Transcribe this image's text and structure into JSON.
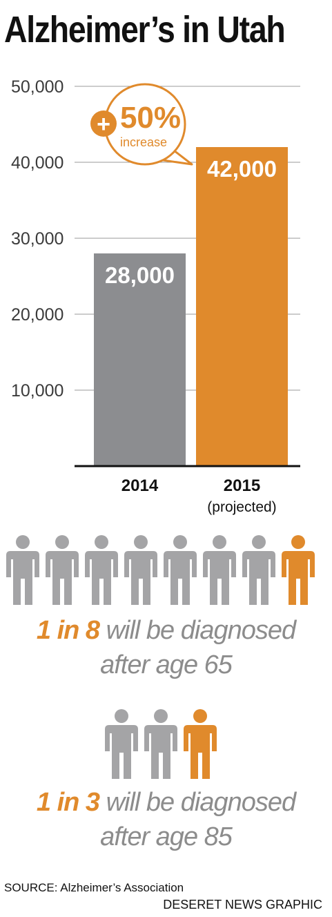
{
  "title": "Alzheimer’s in Utah",
  "chart_data": {
    "type": "bar",
    "categories": [
      "2014",
      "2015"
    ],
    "category_sublabels": [
      "",
      "(projected)"
    ],
    "values": [
      28000,
      42000
    ],
    "value_labels": [
      "28,000",
      "42,000"
    ],
    "yticks": [
      10000,
      20000,
      30000,
      40000,
      50000
    ],
    "ytick_labels": [
      "10,000",
      "20,000",
      "30,000",
      "40,000",
      "50,000"
    ],
    "ylim": [
      0,
      50000
    ],
    "grid": true,
    "colors": [
      "#8c8d90",
      "#e08a2c"
    ],
    "callout": {
      "symbol": "+",
      "value": "50%",
      "text": "increase"
    }
  },
  "stats": [
    {
      "count": 8,
      "highlight": 1,
      "lead": "1 in 8",
      "rest": " will be diagnosed",
      "line2": "after age 65"
    },
    {
      "count": 3,
      "highlight": 1,
      "lead": "1 in 3",
      "rest": " will be diagnosed",
      "line2": "after age 85"
    }
  ],
  "colors": {
    "accent": "#e08a2c",
    "gray": "#8c8d90",
    "person_gray": "#a4a4a6"
  },
  "icons": {
    "person": "person-icon"
  },
  "source": "SOURCE: Alzheimer’s Association",
  "credit": "DESERET NEWS GRAPHIC"
}
